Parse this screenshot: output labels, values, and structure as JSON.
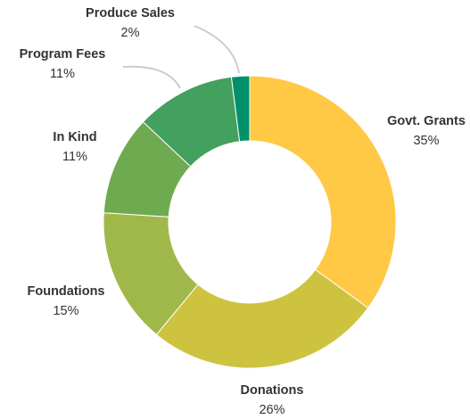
{
  "chart_data": {
    "type": "pie",
    "variant": "donut",
    "slices": [
      {
        "label": "Govt. Grants",
        "value": 35,
        "display": "35%",
        "color": "#ffc845"
      },
      {
        "label": "Donations",
        "value": 26,
        "display": "26%",
        "color": "#cdc33e"
      },
      {
        "label": "Foundations",
        "value": 15,
        "display": "15%",
        "color": "#a0b84a"
      },
      {
        "label": "In Kind",
        "value": 11,
        "display": "11%",
        "color": "#6eaa50"
      },
      {
        "label": "Program Fees",
        "value": 11,
        "display": "11%",
        "color": "#43a05e"
      },
      {
        "label": "Produce Sales",
        "value": 2,
        "display": "2%",
        "color": "#00906a"
      }
    ]
  }
}
